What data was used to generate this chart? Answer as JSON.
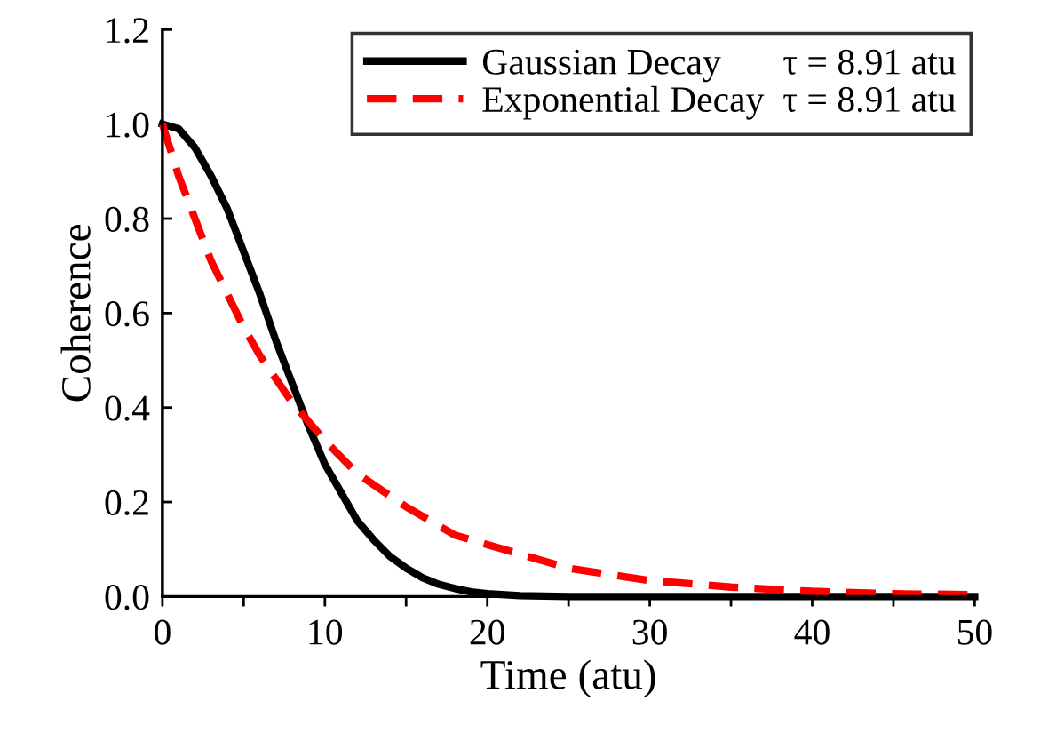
{
  "chart_data": {
    "type": "line",
    "xlabel": "Time (atu)",
    "ylabel": "Coherence",
    "xlim": [
      0,
      50
    ],
    "ylim": [
      0,
      1.2
    ],
    "xticks": [
      0,
      {
        "value": 5,
        "label": null
      },
      10,
      {
        "value": 15,
        "label": null
      },
      20,
      {
        "value": 25,
        "label": null
      },
      30,
      {
        "value": 35,
        "label": null
      },
      40,
      {
        "value": 45,
        "label": null
      },
      50
    ],
    "yticks": [
      {
        "value": 0,
        "label": "0.0"
      },
      0.2,
      0.4,
      0.6,
      0.8,
      {
        "value": 1,
        "label": "1.0"
      },
      1.2
    ],
    "grid": false,
    "legend": "top right",
    "marker": "none",
    "annotations": [
      "τ = 8.91 atu",
      "τ = 8.91 atu"
    ],
    "series": [
      {
        "name": "Gaussian Decay",
        "color": "#000000",
        "line_style": "solid",
        "x": [
          0,
          1,
          2,
          3,
          4,
          5,
          6,
          7,
          8,
          9,
          10,
          11,
          12,
          13,
          14,
          15,
          16,
          17,
          18,
          19,
          20,
          22,
          25,
          30,
          35,
          40,
          45,
          50
        ],
        "values": [
          1.0,
          0.99,
          0.95,
          0.89,
          0.82,
          0.73,
          0.64,
          0.54,
          0.45,
          0.36,
          0.28,
          0.22,
          0.16,
          0.12,
          0.085,
          0.06,
          0.04,
          0.026,
          0.017,
          0.01,
          0.006,
          0.002,
          0.0,
          0.0,
          0.0,
          0.0,
          0.0,
          0.0
        ]
      },
      {
        "name": "Exponential Decay",
        "color": "#ff0000",
        "line_style": "dashed",
        "x": [
          0,
          1,
          2,
          3,
          4,
          5,
          6,
          8,
          10,
          12,
          15,
          18,
          20,
          25,
          30,
          35,
          40,
          45,
          50
        ],
        "values": [
          1.0,
          0.89,
          0.8,
          0.71,
          0.64,
          0.57,
          0.51,
          0.41,
          0.33,
          0.26,
          0.19,
          0.13,
          0.11,
          0.06,
          0.034,
          0.02,
          0.011,
          0.006,
          0.004
        ]
      }
    ]
  }
}
